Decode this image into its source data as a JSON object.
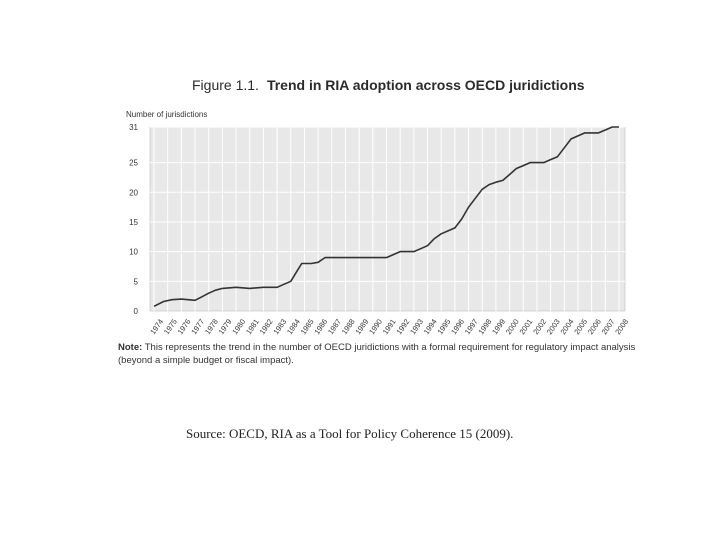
{
  "figure": {
    "number": "Figure 1.1.",
    "title": "Trend in RIA adoption across OECD juridictions"
  },
  "note": {
    "label": "Note:",
    "text": "This represents the trend in the number of OECD juridictions with a formal requirement for regulatory impact analysis (beyond a simple budget or fiscal impact)."
  },
  "source": "Source:  OECD, RIA as a Tool for Policy Coherence 15 (2009).",
  "chart_data": {
    "type": "line",
    "ylabel": "Number of jurisdictions",
    "xlabel": "",
    "ylim": [
      0,
      31
    ],
    "yticks": [
      0,
      5,
      10,
      15,
      20,
      25,
      31
    ],
    "grid": true,
    "x": [
      "1974",
      "1975",
      "1976",
      "1977",
      "1978",
      "1979",
      "1980",
      "1981",
      "1982",
      "1983",
      "1984",
      "1985",
      "1986",
      "1987",
      "1988",
      "1989",
      "1990",
      "1991",
      "1992",
      "1993",
      "1994",
      "1995",
      "1996",
      "1997",
      "1998",
      "1999",
      "2000",
      "2001",
      "2002",
      "2003",
      "2004",
      "2005",
      "2006",
      "2007",
      "2008"
    ],
    "series": [
      {
        "name": "Number of jurisdictions",
        "color": "#333333",
        "points": [
          [
            1974.0,
            0.8
          ],
          [
            1974.7,
            1.6
          ],
          [
            1975.3,
            1.9
          ],
          [
            1976.0,
            2.0
          ],
          [
            1976.5,
            1.9
          ],
          [
            1977.0,
            1.8
          ],
          [
            1977.5,
            2.4
          ],
          [
            1978.0,
            3.0
          ],
          [
            1978.5,
            3.5
          ],
          [
            1979.0,
            3.8
          ],
          [
            1980.0,
            4.0
          ],
          [
            1981.0,
            3.8
          ],
          [
            1982.0,
            4.0
          ],
          [
            1983.0,
            4.0
          ],
          [
            1983.5,
            4.5
          ],
          [
            1984.0,
            5.0
          ],
          [
            1984.4,
            6.5
          ],
          [
            1984.8,
            8.0
          ],
          [
            1985.5,
            8.0
          ],
          [
            1986.0,
            8.2
          ],
          [
            1986.5,
            9.0
          ],
          [
            1987.0,
            9.0
          ],
          [
            1988.0,
            9.0
          ],
          [
            1989.0,
            9.0
          ],
          [
            1990.0,
            9.0
          ],
          [
            1991.0,
            9.0
          ],
          [
            1991.5,
            9.5
          ],
          [
            1992.0,
            10.0
          ],
          [
            1993.0,
            10.0
          ],
          [
            1993.5,
            10.5
          ],
          [
            1994.0,
            11.0
          ],
          [
            1994.5,
            12.2
          ],
          [
            1995.0,
            13.0
          ],
          [
            1995.5,
            13.5
          ],
          [
            1996.0,
            14.0
          ],
          [
            1996.5,
            15.5
          ],
          [
            1997.0,
            17.5
          ],
          [
            1997.5,
            19.0
          ],
          [
            1998.0,
            20.5
          ],
          [
            1998.5,
            21.3
          ],
          [
            1999.0,
            21.7
          ],
          [
            1999.5,
            22.0
          ],
          [
            2000.0,
            23.0
          ],
          [
            2000.5,
            24.0
          ],
          [
            2001.0,
            24.5
          ],
          [
            2001.5,
            25.0
          ],
          [
            2002.0,
            25.0
          ],
          [
            2002.5,
            25.0
          ],
          [
            2003.0,
            25.5
          ],
          [
            2003.5,
            26.0
          ],
          [
            2004.0,
            27.5
          ],
          [
            2004.5,
            29.0
          ],
          [
            2005.0,
            29.5
          ],
          [
            2005.5,
            30.0
          ],
          [
            2006.0,
            30.0
          ],
          [
            2006.5,
            30.0
          ],
          [
            2007.0,
            30.5
          ],
          [
            2007.5,
            31.0
          ],
          [
            2008.0,
            31.0
          ]
        ]
      }
    ]
  }
}
